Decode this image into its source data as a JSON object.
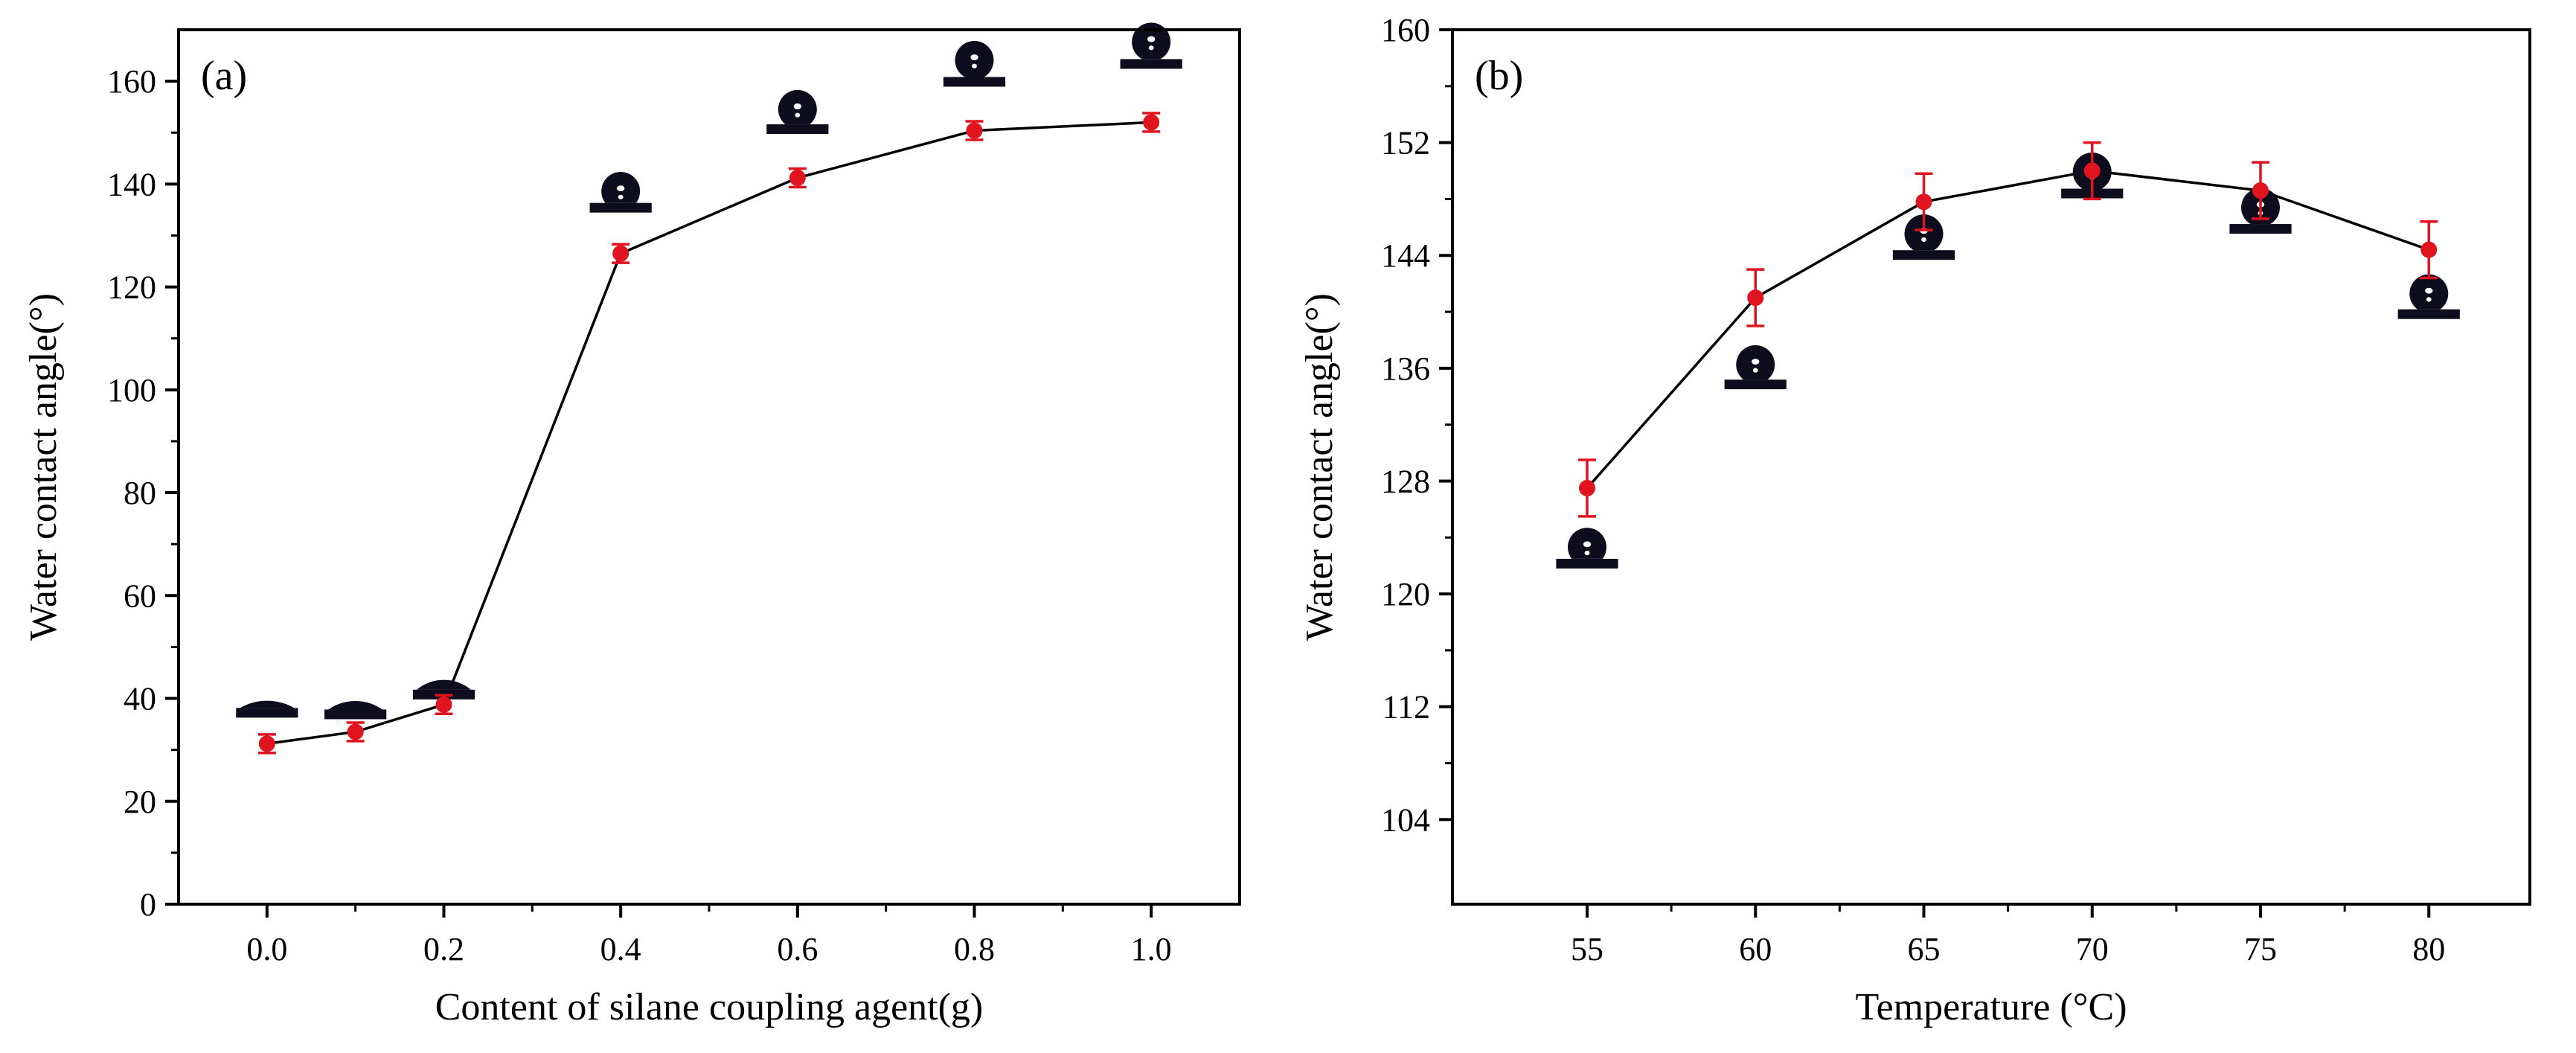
{
  "chart_data": [
    {
      "type": "line",
      "panel_label": "(a)",
      "title": "",
      "xlabel": "Content of silane coupling agent(g)",
      "ylabel": "Water contact angle(°)",
      "x": [
        0.0,
        0.1,
        0.2,
        0.4,
        0.6,
        0.8,
        1.0
      ],
      "values": [
        31.2,
        33.5,
        38.8,
        126.5,
        141.2,
        150.4,
        152.0
      ],
      "errors": [
        1.8,
        1.8,
        1.8,
        1.8,
        1.8,
        1.8,
        1.8
      ],
      "xlim": [
        -0.1,
        1.1
      ],
      "ylim": [
        0,
        170
      ],
      "xticks": [
        0.0,
        0.2,
        0.4,
        0.6,
        0.8,
        1.0
      ],
      "xtick_labels": [
        "0.0",
        "0.2",
        "0.4",
        "0.6",
        "0.8",
        "1.0"
      ],
      "yticks": [
        0,
        20,
        40,
        60,
        80,
        100,
        120,
        140,
        160
      ],
      "ytick_labels": [
        "0",
        "20",
        "40",
        "60",
        "80",
        "100",
        "120",
        "140",
        "160"
      ],
      "droplet_inset_angles_deg": [
        30,
        35,
        40,
        127,
        141,
        150,
        152
      ],
      "grid": false
    },
    {
      "type": "line",
      "panel_label": "(b)",
      "title": "",
      "xlabel": "Temperature (°C)",
      "ylabel": "Water contact angle(°)",
      "x": [
        55,
        60,
        65,
        70,
        75,
        80
      ],
      "values": [
        127.5,
        141.0,
        147.8,
        150.0,
        148.6,
        144.4
      ],
      "errors": [
        2.0,
        2.0,
        2.0,
        2.0,
        2.0,
        2.0
      ],
      "xlim": [
        51,
        83
      ],
      "ylim": [
        98,
        160
      ],
      "xticks": [
        55,
        60,
        65,
        70,
        75,
        80
      ],
      "xtick_labels": [
        "55",
        "60",
        "65",
        "70",
        "75",
        "80"
      ],
      "yticks": [
        104,
        112,
        120,
        128,
        136,
        144,
        152,
        160
      ],
      "ytick_labels": [
        "104",
        "112",
        "120",
        "128",
        "136",
        "144",
        "152",
        "160"
      ],
      "droplet_inset_angles_deg": [
        127,
        141,
        148,
        150,
        149,
        144
      ],
      "grid": false
    }
  ],
  "colors": {
    "axis": "#000000",
    "line": "#000000",
    "marker": "#e0141e",
    "droplet": "#0d0d1e",
    "droplet_highlight": "#ffffff"
  }
}
